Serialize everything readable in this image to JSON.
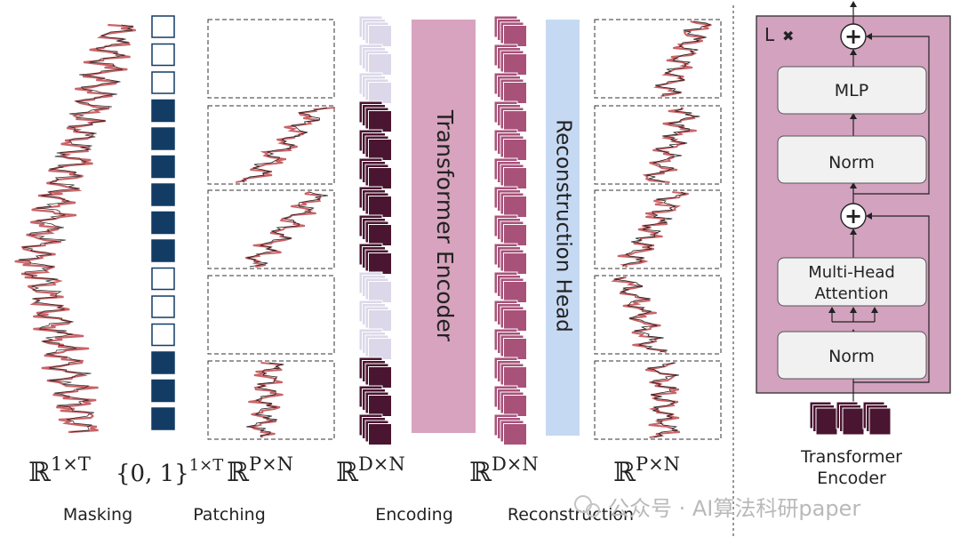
{
  "stage_labels": {
    "masking": "Masking",
    "patching": "Patching",
    "encoding": "Encoding",
    "reconstruction": "Reconstruction"
  },
  "math_labels": {
    "input_base": "ℝ",
    "input_sup": "1×T",
    "mask_base": "{0, 1}",
    "mask_sup": "1×T",
    "patch_base": "ℝ",
    "patch_sup": "P×N",
    "enc_base": "ℝ",
    "enc_sup": "D×N",
    "rec_base": "ℝ",
    "rec_sup": "D×N",
    "out_base": "ℝ",
    "out_sup": "P×N"
  },
  "blocks": {
    "transformer_encoder": "Transformer Encoder",
    "reconstruction_head": "Reconstruction Head"
  },
  "encoder_detail": {
    "repeat": "L",
    "repeat_symbol": "✖",
    "plus": "+",
    "mlp": "MLP",
    "norm_top": "Norm",
    "mha_line1": "Multi-Head",
    "mha_line2": "Attention",
    "norm_bottom": "Norm",
    "caption_line1": "Transformer",
    "caption_line2": "Encoder"
  },
  "mask_pattern": [
    0,
    0,
    0,
    1,
    1,
    1,
    1,
    1,
    1,
    0,
    0,
    0,
    1,
    1,
    1
  ],
  "patch_visible": [
    false,
    true,
    true,
    false,
    true
  ],
  "watermark": "公众号 · AI算法科研paper",
  "colors": {
    "mask_filled": "#123c64",
    "token_dark": "#4a1530",
    "token_light": "#dcd8ea",
    "token_recon": "#a8527a",
    "encoder_block": "#d7a3be",
    "recon_head_block": "#c6d9f3",
    "encoder_panel": "#d3a2bf",
    "signal_red": "#c0484c",
    "signal_black": "#1a1a1a"
  }
}
